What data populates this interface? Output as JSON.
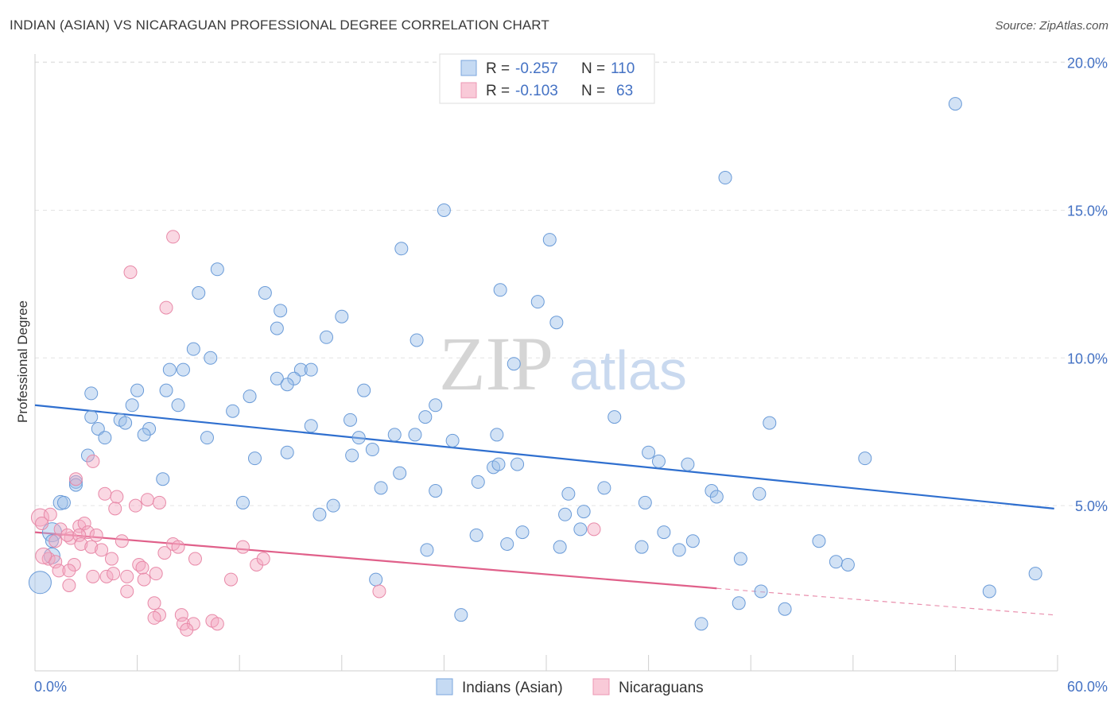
{
  "title": "INDIAN (ASIAN) VS NICARAGUAN PROFESSIONAL DEGREE CORRELATION CHART",
  "source": "Source: ZipAtlas.com",
  "watermark": {
    "zip": "ZIP",
    "atlas": "atlas"
  },
  "legend": {
    "rows": [
      {
        "r_label": "R =",
        "r_value": "-0.257",
        "n_label": "N =",
        "n_value": "110",
        "color": "#9bbfe8"
      },
      {
        "r_label": "R =",
        "r_value": "-0.103",
        "n_label": "N =",
        "n_value": "63",
        "color": "#f4a9c0"
      }
    ]
  },
  "chart_data": {
    "type": "scatter",
    "xlabel": "",
    "ylabel": "Professional Degree",
    "xlim": [
      0,
      60
    ],
    "ylim": [
      0,
      20.5
    ],
    "x_tick_labels": [
      "0.0%",
      "60.0%"
    ],
    "y_ticks": [
      5,
      10,
      15,
      20
    ],
    "y_tick_labels": [
      "5.0%",
      "10.0%",
      "15.0%",
      "20.0%"
    ],
    "grid": true,
    "legend_position": "top-center",
    "series": [
      {
        "name": "Indians (Asian)",
        "color": "#9bbfe8",
        "stroke": "#6a9bd8",
        "line_color": "#2f6fcf",
        "trend": {
          "x0": 0,
          "y0": 8.4,
          "x1": 59.8,
          "y1": 4.9
        },
        "points": [
          [
            54.0,
            18.6
          ],
          [
            40.5,
            16.1
          ],
          [
            24.0,
            15.0
          ],
          [
            30.2,
            14.0
          ],
          [
            21.5,
            13.7
          ],
          [
            10.7,
            13.0
          ],
          [
            27.3,
            12.3
          ],
          [
            9.6,
            12.2
          ],
          [
            13.5,
            12.2
          ],
          [
            29.5,
            11.9
          ],
          [
            14.4,
            11.6
          ],
          [
            14.2,
            11.0
          ],
          [
            30.6,
            11.2
          ],
          [
            18.0,
            11.4
          ],
          [
            17.1,
            10.7
          ],
          [
            22.4,
            10.6
          ],
          [
            9.3,
            10.3
          ],
          [
            10.3,
            10.0
          ],
          [
            7.9,
            9.6
          ],
          [
            8.7,
            9.6
          ],
          [
            28.1,
            9.8
          ],
          [
            14.2,
            9.3
          ],
          [
            15.6,
            9.6
          ],
          [
            16.2,
            9.6
          ],
          [
            15.2,
            9.3
          ],
          [
            14.8,
            9.1
          ],
          [
            19.3,
            8.9
          ],
          [
            6.0,
            8.9
          ],
          [
            7.7,
            8.9
          ],
          [
            3.3,
            8.8
          ],
          [
            12.6,
            8.7
          ],
          [
            5.7,
            8.4
          ],
          [
            8.4,
            8.4
          ],
          [
            23.5,
            8.4
          ],
          [
            11.6,
            8.2
          ],
          [
            22.9,
            8.0
          ],
          [
            18.5,
            7.9
          ],
          [
            34.0,
            8.0
          ],
          [
            43.1,
            7.8
          ],
          [
            3.3,
            8.0
          ],
          [
            5.0,
            7.9
          ],
          [
            3.7,
            7.6
          ],
          [
            5.3,
            7.8
          ],
          [
            6.7,
            7.6
          ],
          [
            16.2,
            7.7
          ],
          [
            6.4,
            7.4
          ],
          [
            10.1,
            7.3
          ],
          [
            4.1,
            7.3
          ],
          [
            19.0,
            7.3
          ],
          [
            21.1,
            7.4
          ],
          [
            22.3,
            7.4
          ],
          [
            24.5,
            7.2
          ],
          [
            27.1,
            7.4
          ],
          [
            19.8,
            6.9
          ],
          [
            14.8,
            6.8
          ],
          [
            36.0,
            6.8
          ],
          [
            18.6,
            6.7
          ],
          [
            3.1,
            6.7
          ],
          [
            12.9,
            6.6
          ],
          [
            36.6,
            6.5
          ],
          [
            48.7,
            6.6
          ],
          [
            38.3,
            6.4
          ],
          [
            28.3,
            6.4
          ],
          [
            26.9,
            6.3
          ],
          [
            27.2,
            6.4
          ],
          [
            21.4,
            6.1
          ],
          [
            7.5,
            5.9
          ],
          [
            2.4,
            5.8
          ],
          [
            2.4,
            5.7
          ],
          [
            26.0,
            5.8
          ],
          [
            20.3,
            5.6
          ],
          [
            33.4,
            5.6
          ],
          [
            23.5,
            5.5
          ],
          [
            31.3,
            5.4
          ],
          [
            39.7,
            5.5
          ],
          [
            42.5,
            5.4
          ],
          [
            40.0,
            5.3
          ],
          [
            1.5,
            5.1
          ],
          [
            1.7,
            5.1
          ],
          [
            12.2,
            5.1
          ],
          [
            17.5,
            5.0
          ],
          [
            35.8,
            5.1
          ],
          [
            16.7,
            4.7
          ],
          [
            31.1,
            4.7
          ],
          [
            32.2,
            4.8
          ],
          [
            32.0,
            4.2
          ],
          [
            25.9,
            4.0
          ],
          [
            28.6,
            4.1
          ],
          [
            36.9,
            4.1
          ],
          [
            1.0,
            4.1
          ],
          [
            1.0,
            3.8
          ],
          [
            46.0,
            3.8
          ],
          [
            37.8,
            3.5
          ],
          [
            38.6,
            3.8
          ],
          [
            30.8,
            3.6
          ],
          [
            27.7,
            3.7
          ],
          [
            35.6,
            3.6
          ],
          [
            23.0,
            3.5
          ],
          [
            1.0,
            3.3
          ],
          [
            41.4,
            3.2
          ],
          [
            47.0,
            3.1
          ],
          [
            47.7,
            3.0
          ],
          [
            20.0,
            2.5
          ],
          [
            58.7,
            2.7
          ],
          [
            56.0,
            2.1
          ],
          [
            42.6,
            2.1
          ],
          [
            44.0,
            1.5
          ],
          [
            41.3,
            1.7
          ],
          [
            25.0,
            1.3
          ],
          [
            39.1,
            1.0
          ],
          [
            0.3,
            2.4
          ]
        ]
      },
      {
        "name": "Nicaraguans",
        "color": "#f4a9c0",
        "stroke": "#e889a8",
        "line_color": "#e0608a",
        "trend": {
          "x0": 0,
          "y0": 4.1,
          "x1": 40,
          "y1": 2.2
        },
        "trend_dashed_to": {
          "x": 59.8,
          "y": 1.3
        },
        "points": [
          [
            8.1,
            14.1
          ],
          [
            5.6,
            12.9
          ],
          [
            7.7,
            11.7
          ],
          [
            2.4,
            5.9
          ],
          [
            3.4,
            6.5
          ],
          [
            4.1,
            5.4
          ],
          [
            4.8,
            5.3
          ],
          [
            4.7,
            4.9
          ],
          [
            5.9,
            5.0
          ],
          [
            6.6,
            5.2
          ],
          [
            7.3,
            5.1
          ],
          [
            0.3,
            4.6
          ],
          [
            0.9,
            4.7
          ],
          [
            1.5,
            4.2
          ],
          [
            2.6,
            4.3
          ],
          [
            2.9,
            4.4
          ],
          [
            3.1,
            4.1
          ],
          [
            3.6,
            4.0
          ],
          [
            2.1,
            3.9
          ],
          [
            1.9,
            4.0
          ],
          [
            2.6,
            4.0
          ],
          [
            1.2,
            3.8
          ],
          [
            2.7,
            3.7
          ],
          [
            3.3,
            3.6
          ],
          [
            3.9,
            3.5
          ],
          [
            5.1,
            3.8
          ],
          [
            8.1,
            3.7
          ],
          [
            8.4,
            3.6
          ],
          [
            12.2,
            3.6
          ],
          [
            7.6,
            3.4
          ],
          [
            0.4,
            4.4
          ],
          [
            0.8,
            3.2
          ],
          [
            1.2,
            3.1
          ],
          [
            2.3,
            3.0
          ],
          [
            4.5,
            3.2
          ],
          [
            6.1,
            3.0
          ],
          [
            6.3,
            2.9
          ],
          [
            9.4,
            3.2
          ],
          [
            13.0,
            3.0
          ],
          [
            13.4,
            3.2
          ],
          [
            1.4,
            2.8
          ],
          [
            2.0,
            2.8
          ],
          [
            3.4,
            2.6
          ],
          [
            4.2,
            2.6
          ],
          [
            4.6,
            2.7
          ],
          [
            5.4,
            2.6
          ],
          [
            6.4,
            2.5
          ],
          [
            7.1,
            2.7
          ],
          [
            11.5,
            2.5
          ],
          [
            2.0,
            2.3
          ],
          [
            5.4,
            2.1
          ],
          [
            20.2,
            2.1
          ],
          [
            7.0,
            1.7
          ],
          [
            7.3,
            1.3
          ],
          [
            8.6,
            1.3
          ],
          [
            7.0,
            1.2
          ],
          [
            8.7,
            1.0
          ],
          [
            9.3,
            1.0
          ],
          [
            10.4,
            1.1
          ],
          [
            10.7,
            1.0
          ],
          [
            8.9,
            0.8
          ],
          [
            32.8,
            4.2
          ],
          [
            0.5,
            3.3
          ]
        ]
      }
    ]
  }
}
